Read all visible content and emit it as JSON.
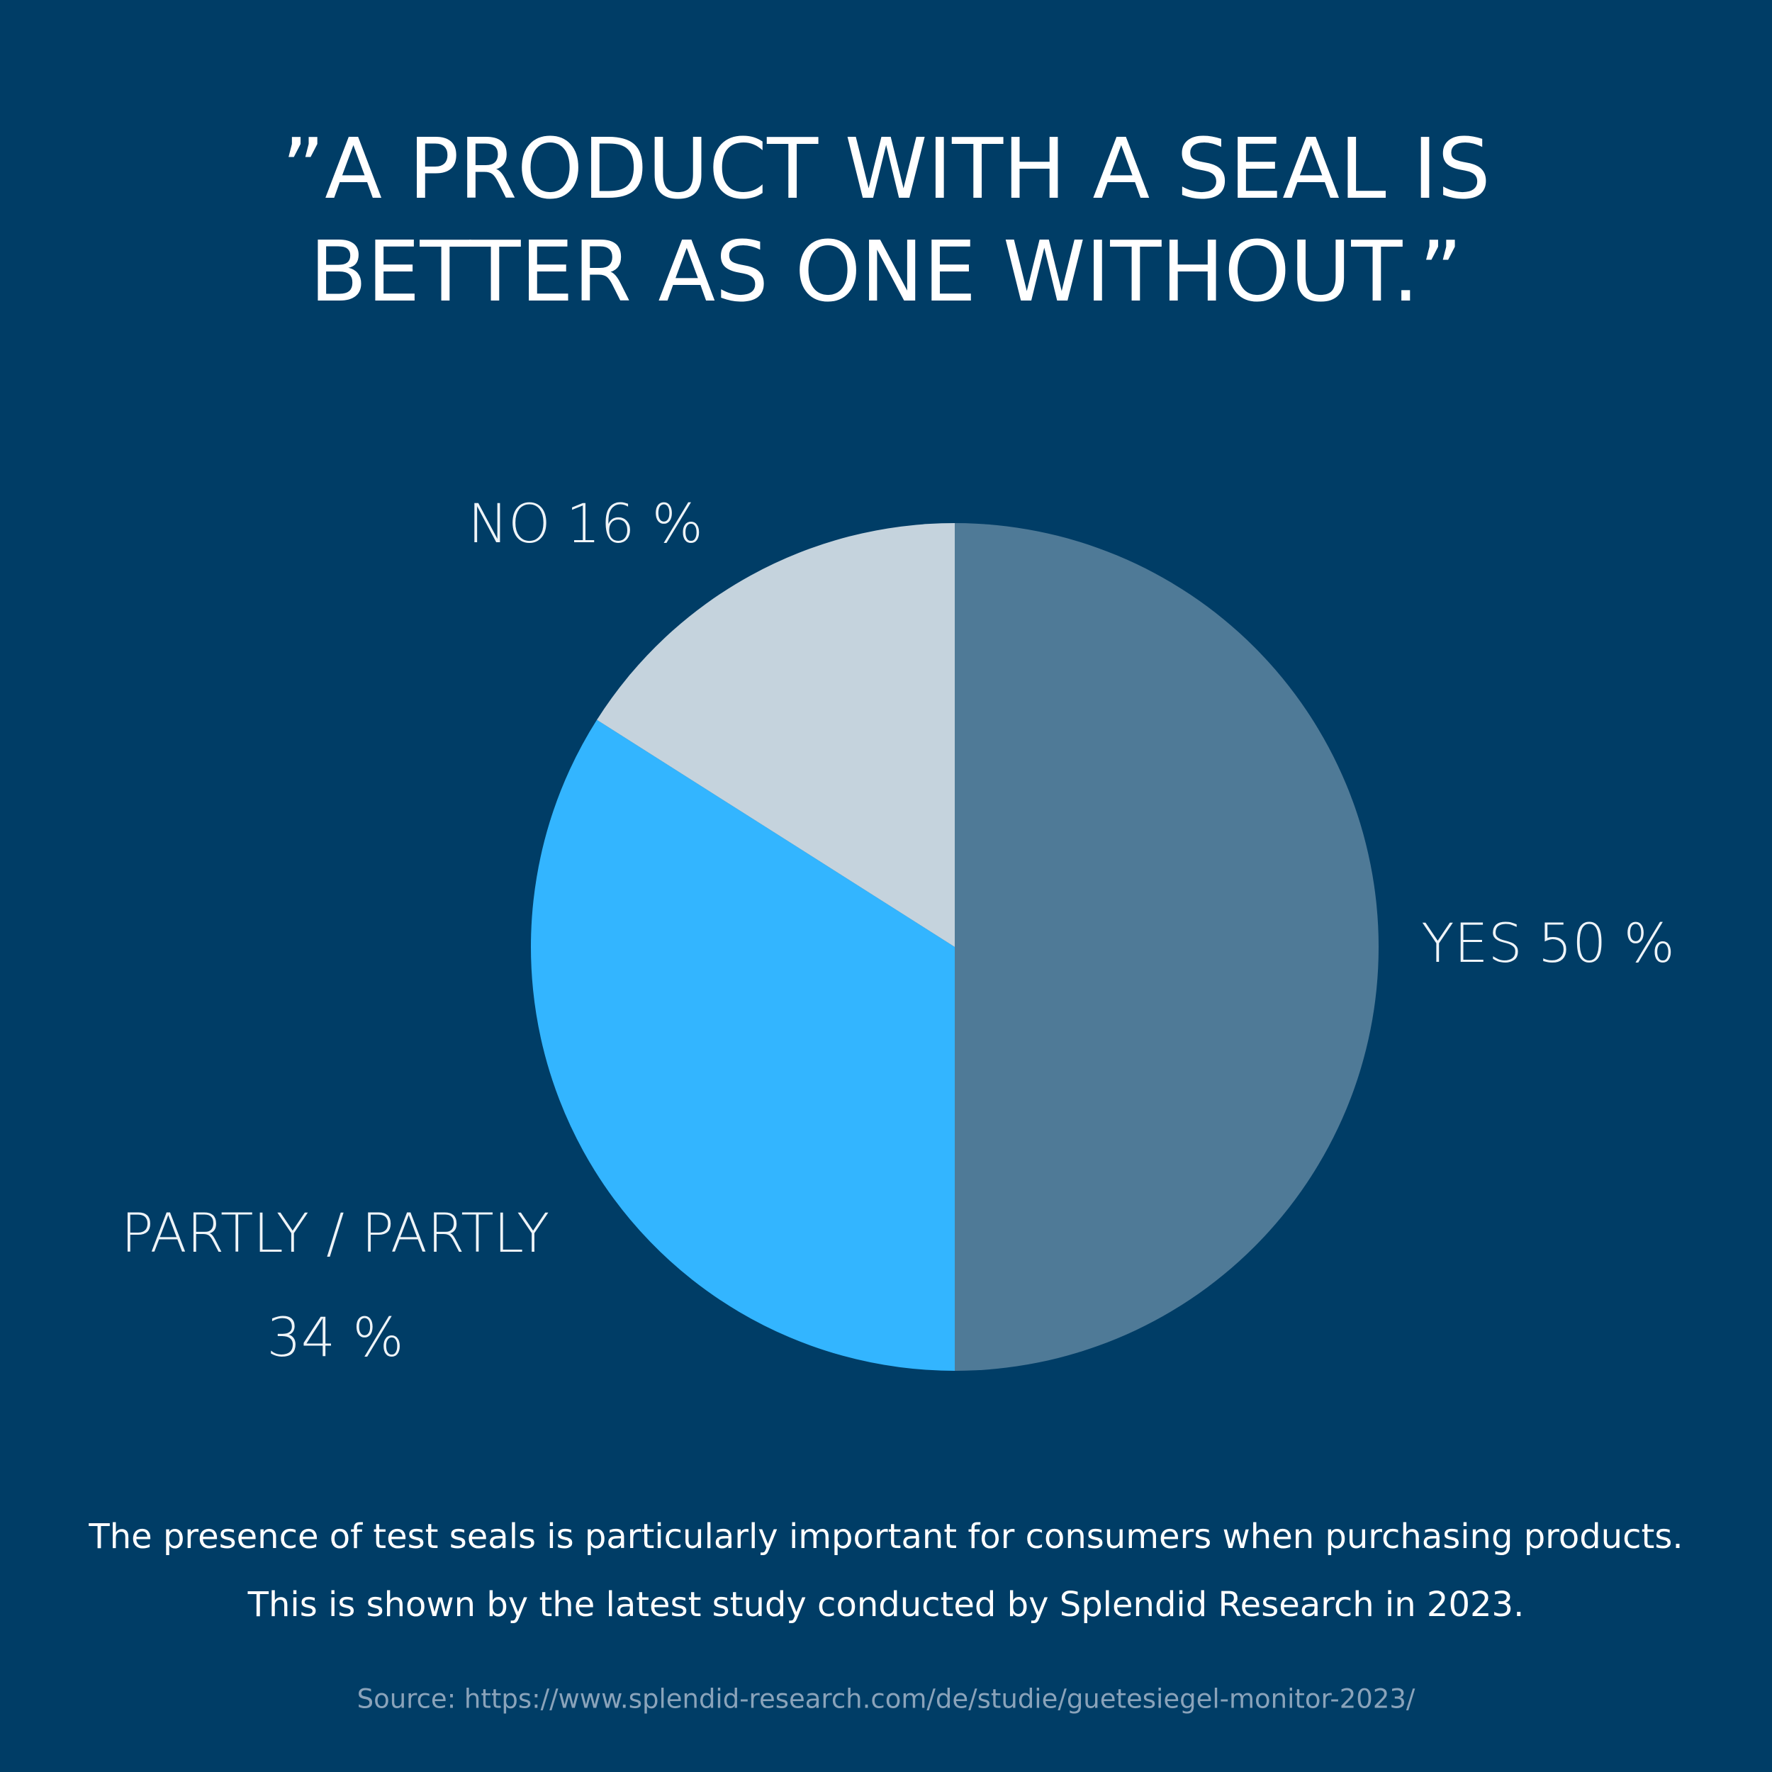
{
  "chart_data": {
    "type": "pie",
    "title": [
      "”A PRODUCT WITH A SEAL IS",
      "BETTER AS ONE WITHOUT.”"
    ],
    "categories": [
      "YES",
      "PARTLY / PARTLY",
      "NO"
    ],
    "values": [
      50,
      34,
      16
    ],
    "value_labels": [
      "50 %",
      "34 %",
      "16 %"
    ],
    "colors": [
      "#4f7a97",
      "#33b5ff",
      "#c5d3dd"
    ],
    "caption": [
      "The presence of test seals is particularly important for consumers when purchasing products.",
      "This is shown by the latest study conducted by Splendid Research in 2023."
    ],
    "source": "Source: https://www.splendid-research.com/de/studie/guetesiegel-monitor-2023/"
  }
}
